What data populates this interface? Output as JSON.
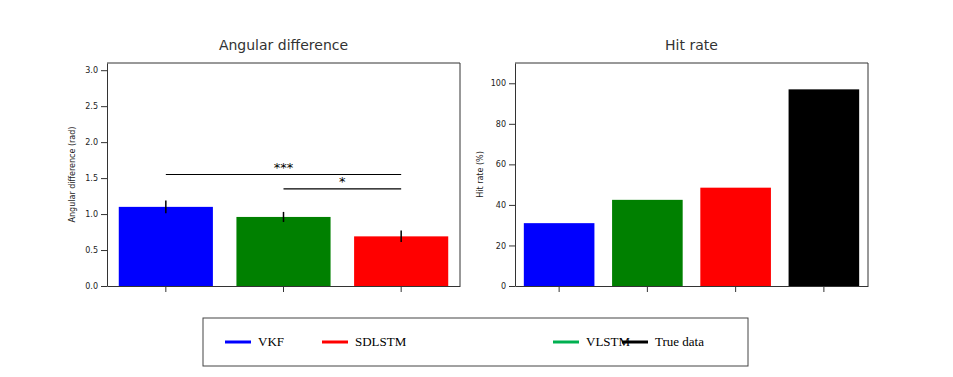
{
  "chart_data": [
    {
      "type": "bar",
      "title": "Angular difference",
      "ylabel": "Angular difference (rad)",
      "categories": [
        null,
        null,
        null
      ],
      "values": [
        1.1,
        0.96,
        0.69
      ],
      "errors": [
        0.09,
        0.07,
        0.08
      ],
      "colors": [
        "#0000ff",
        "#008000",
        "#ff0000"
      ],
      "ylim": [
        0,
        3.1
      ],
      "yticks": [
        {
          "value": 0,
          "label": "0.0"
        },
        0.5,
        {
          "value": 1,
          "label": "1.0"
        },
        1.5,
        {
          "value": 2,
          "label": "2.0"
        },
        2.5,
        {
          "value": 3,
          "label": "3.0"
        }
      ],
      "significance": [
        {
          "label": "***",
          "from": 0,
          "to": 2,
          "y": 1.55
        },
        {
          "label": "*",
          "from": 1,
          "to": 2,
          "y": 1.35
        }
      ]
    },
    {
      "type": "bar",
      "title": "Hit rate",
      "ylabel": "Hit rate (%)",
      "categories": [
        null,
        null,
        null,
        null
      ],
      "values": [
        31,
        42.5,
        48.5,
        97
      ],
      "colors": [
        "#0000ff",
        "#008000",
        "#ff0000",
        "#000000"
      ],
      "ylim": [
        0,
        110
      ],
      "yticks": [
        0,
        20,
        40,
        60,
        80,
        100
      ]
    }
  ],
  "shared_legend": {
    "items": [
      {
        "name": "VKF",
        "color": "#0000ff"
      },
      {
        "name": "SDLSTM",
        "color": "#ff0000"
      },
      {
        "name": "VLSTM",
        "color": "#00b050"
      },
      {
        "name": "True data",
        "color": "#000000"
      }
    ]
  }
}
